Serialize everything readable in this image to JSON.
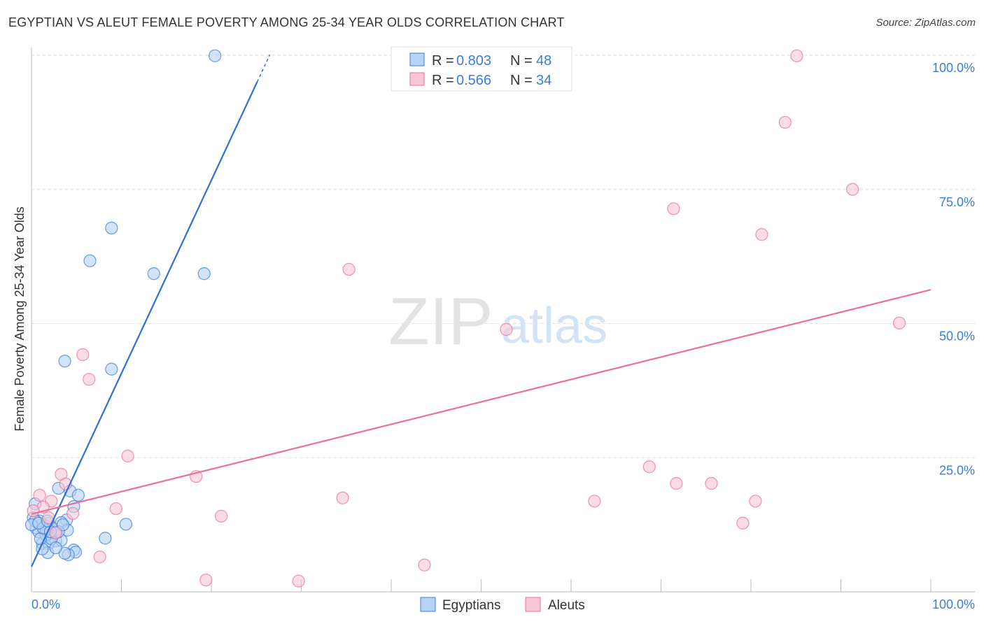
{
  "header": {
    "title": "EGYPTIAN VS ALEUT FEMALE POVERTY AMONG 25-34 YEAR OLDS CORRELATION CHART",
    "source": "Source: ZipAtlas.com"
  },
  "watermark": {
    "zip": "ZIP",
    "atlas": "atlas"
  },
  "colors": {
    "blue": "#3b7dd8",
    "blue_fill": "#b7d2f3",
    "pink": "#e8709a",
    "pink_fill": "#f8c6d6",
    "label": "#3b7dd8"
  },
  "chart_data": {
    "type": "scatter",
    "title": "EGYPTIAN VS ALEUT FEMALE POVERTY AMONG 25-34 YEAR OLDS CORRELATION CHART",
    "xlabel": "",
    "ylabel": "Female Poverty Among 25-34 Year Olds",
    "xlim": [
      0,
      100
    ],
    "ylim": [
      0,
      100
    ],
    "x_tick_labels": [
      "0.0%",
      "100.0%"
    ],
    "y_ticks": [
      25,
      50,
      75,
      100
    ],
    "y_tick_labels": [
      "25.0%",
      "50.0%",
      "75.0%",
      "100.0%"
    ],
    "grid": true,
    "legend_placement": "top-center",
    "stats": [
      {
        "r_label": "R =",
        "r": "0.803",
        "n_label": "N =",
        "n": "48"
      },
      {
        "r_label": "R =",
        "r": "0.566",
        "n_label": "N =",
        "n": "34"
      }
    ],
    "series": [
      {
        "name": "Egyptians",
        "trend": {
          "intercept": 4.7,
          "slope": 3.6,
          "solid_until_x": 25.1,
          "dashed_until_x": 26.5
        },
        "points": [
          [
            20.4,
            99.9
          ],
          [
            8.9,
            67.8
          ],
          [
            6.5,
            61.7
          ],
          [
            13.6,
            59.3
          ],
          [
            19.2,
            59.3
          ],
          [
            3.7,
            43.0
          ],
          [
            8.9,
            41.5
          ],
          [
            3.0,
            19.3
          ],
          [
            4.3,
            18.8
          ],
          [
            5.2,
            18.0
          ],
          [
            4.7,
            15.9
          ],
          [
            3.9,
            13.4
          ],
          [
            3.3,
            12.9
          ],
          [
            10.5,
            12.6
          ],
          [
            4.0,
            11.5
          ],
          [
            8.2,
            10.0
          ],
          [
            1.2,
            9.0
          ],
          [
            1.9,
            9.0
          ],
          [
            2.7,
            9.5
          ],
          [
            3.3,
            9.6
          ],
          [
            4.7,
            7.8
          ],
          [
            4.9,
            7.4
          ],
          [
            4.1,
            6.9
          ],
          [
            3.7,
            7.2
          ],
          [
            1.8,
            7.3
          ],
          [
            1.2,
            8.0
          ],
          [
            0.4,
            16.4
          ],
          [
            0.2,
            13.8
          ],
          [
            0.5,
            11.9
          ],
          [
            0.8,
            11.2
          ],
          [
            1.3,
            12.5
          ],
          [
            1.9,
            12.8
          ],
          [
            2.3,
            11.9
          ],
          [
            2.6,
            11.0
          ],
          [
            1.6,
            10.6
          ],
          [
            2.2,
            9.9
          ],
          [
            0.9,
            13.2
          ],
          [
            0.4,
            13.2
          ],
          [
            3.0,
            11.2
          ],
          [
            3.5,
            12.5
          ],
          [
            1.6,
            11.5
          ],
          [
            1.0,
            9.9
          ],
          [
            2.7,
            8.2
          ],
          [
            0.0,
            12.5
          ],
          [
            1.3,
            11.9
          ],
          [
            2.1,
            11.2
          ],
          [
            0.8,
            12.8
          ],
          [
            1.8,
            13.2
          ]
        ]
      },
      {
        "name": "Aleuts",
        "trend": {
          "intercept": 14.5,
          "slope": 0.418,
          "solid_until_x": 100
        },
        "points": [
          [
            85.1,
            99.9
          ],
          [
            83.8,
            87.5
          ],
          [
            91.3,
            75.0
          ],
          [
            71.4,
            71.4
          ],
          [
            81.2,
            66.6
          ],
          [
            35.3,
            60.1
          ],
          [
            52.8,
            48.9
          ],
          [
            96.5,
            50.1
          ],
          [
            5.7,
            44.2
          ],
          [
            6.4,
            39.6
          ],
          [
            10.7,
            25.3
          ],
          [
            18.3,
            21.5
          ],
          [
            3.3,
            21.9
          ],
          [
            3.8,
            20.1
          ],
          [
            0.9,
            18.0
          ],
          [
            2.2,
            16.9
          ],
          [
            1.3,
            15.8
          ],
          [
            9.4,
            15.5
          ],
          [
            4.6,
            14.6
          ],
          [
            21.1,
            14.1
          ],
          [
            34.6,
            17.5
          ],
          [
            62.6,
            16.9
          ],
          [
            68.7,
            23.3
          ],
          [
            71.7,
            20.2
          ],
          [
            75.6,
            20.2
          ],
          [
            80.5,
            16.9
          ],
          [
            79.1,
            12.8
          ],
          [
            7.6,
            6.5
          ],
          [
            19.4,
            2.2
          ],
          [
            29.7,
            2.0
          ],
          [
            43.7,
            5.0
          ],
          [
            0.2,
            15.1
          ],
          [
            2.7,
            11.0
          ],
          [
            1.9,
            13.8
          ]
        ]
      }
    ]
  }
}
